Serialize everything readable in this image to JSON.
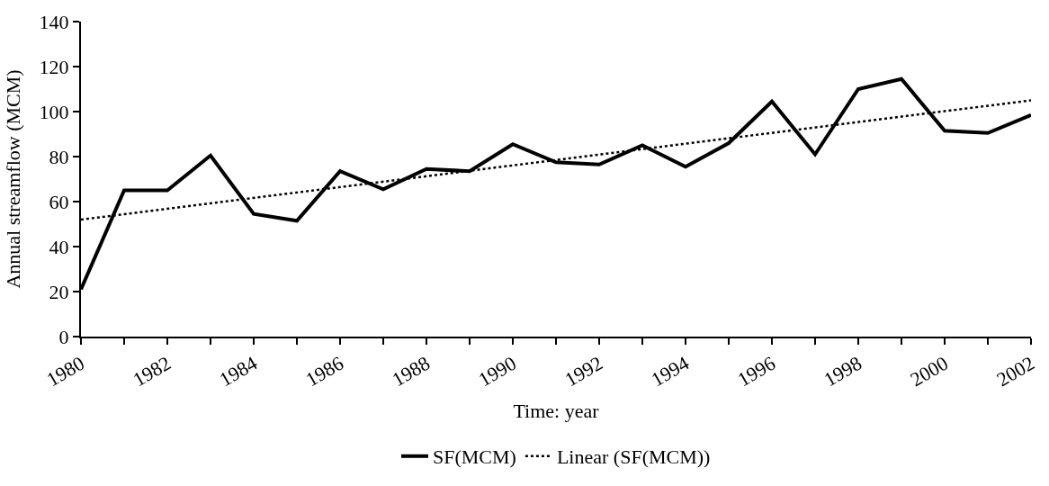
{
  "chart_data": {
    "type": "line",
    "xlabel": "Time: year",
    "ylabel": "Annual streamflow (MCM)",
    "x": [
      1980,
      1981,
      1982,
      1983,
      1984,
      1985,
      1986,
      1987,
      1988,
      1989,
      1990,
      1991,
      1992,
      1993,
      1994,
      1995,
      1996,
      1997,
      1998,
      1999,
      2000,
      2001,
      2002
    ],
    "series": [
      {
        "name": "SF(MCM)",
        "color": "#000000",
        "line_style": "solid",
        "values": [
          21,
          65,
          65,
          80.5,
          54.5,
          51.5,
          73.5,
          65.5,
          74.5,
          73.5,
          85.5,
          77.5,
          76.5,
          85,
          75.5,
          86,
          104.5,
          81,
          110,
          114.5,
          91.5,
          90.5,
          98.5
        ]
      },
      {
        "name": "Linear (SF(MCM))",
        "type": "line",
        "color": "#000000",
        "line_style": "dotted",
        "x": [
          1980,
          2002
        ],
        "values": [
          52,
          105
        ]
      }
    ],
    "xlim": [
      1980,
      2002
    ],
    "xticks": [
      1980,
      {
        "value": 1981,
        "label": null
      },
      1982,
      {
        "value": 1983,
        "label": null
      },
      1984,
      {
        "value": 1985,
        "label": null
      },
      1986,
      {
        "value": 1987,
        "label": null
      },
      1988,
      {
        "value": 1989,
        "label": null
      },
      1990,
      {
        "value": 1991,
        "label": null
      },
      1992,
      {
        "value": 1993,
        "label": null
      },
      1994,
      {
        "value": 1995,
        "label": null
      },
      1996,
      {
        "value": 1997,
        "label": null
      },
      1998,
      {
        "value": 1999,
        "label": null
      },
      2000,
      {
        "value": 2001,
        "label": null
      },
      2002
    ],
    "ylim": [
      0,
      140
    ],
    "yticks": [
      0,
      20,
      40,
      60,
      80,
      100,
      120,
      140
    ],
    "legend": "bottom",
    "marker": "none"
  }
}
